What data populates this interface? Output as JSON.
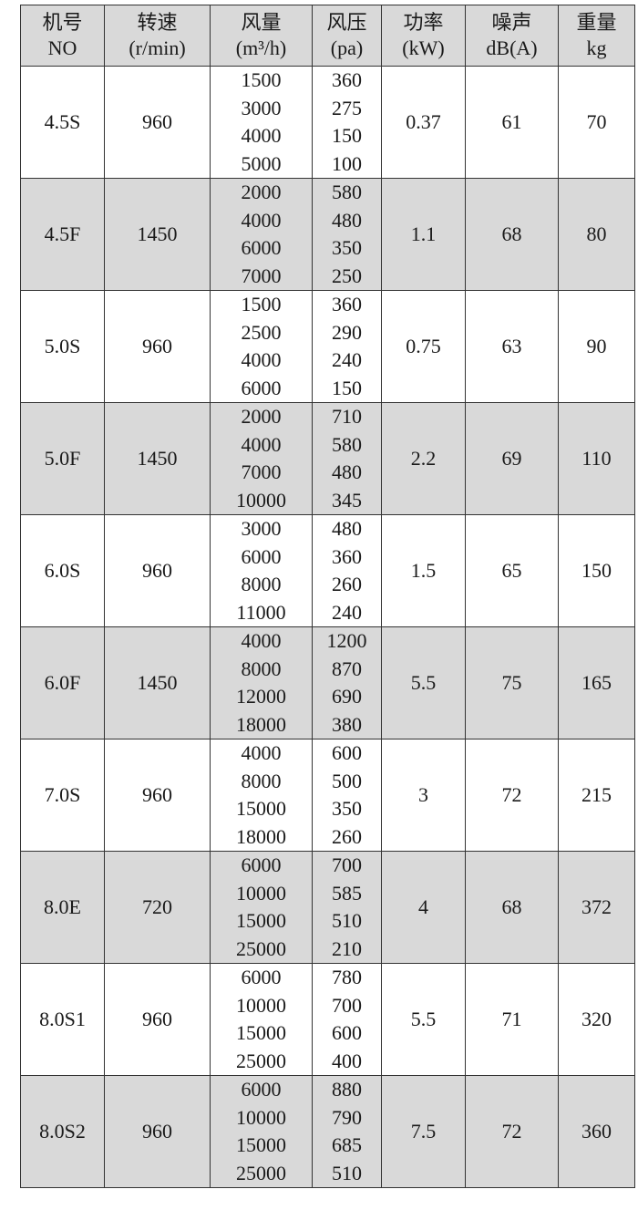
{
  "headers": [
    {
      "zh": "机号",
      "en": "NO"
    },
    {
      "zh": "转速",
      "en": "(r/min)"
    },
    {
      "zh": "风量",
      "en": "(m³/h)"
    },
    {
      "zh": "风压",
      "en": "(pa)"
    },
    {
      "zh": "功率",
      "en": "(kW)"
    },
    {
      "zh": "噪声",
      "en": "dB(A)"
    },
    {
      "zh": "重量",
      "en": "kg"
    }
  ],
  "rows": [
    {
      "no": "4.5S",
      "speed": "960",
      "flow": [
        "1500",
        "3000",
        "4000",
        "5000"
      ],
      "pressure": [
        "360",
        "275",
        "150",
        "100"
      ],
      "power": "0.37",
      "noise": "61",
      "weight": "70",
      "shaded": false
    },
    {
      "no": "4.5F",
      "speed": "1450",
      "flow": [
        "2000",
        "4000",
        "6000",
        "7000"
      ],
      "pressure": [
        "580",
        "480",
        "350",
        "250"
      ],
      "power": "1.1",
      "noise": "68",
      "weight": "80",
      "shaded": true
    },
    {
      "no": "5.0S",
      "speed": "960",
      "flow": [
        "1500",
        "2500",
        "4000",
        "6000"
      ],
      "pressure": [
        "360",
        "290",
        "240",
        "150"
      ],
      "power": "0.75",
      "noise": "63",
      "weight": "90",
      "shaded": false
    },
    {
      "no": "5.0F",
      "speed": "1450",
      "flow": [
        "2000",
        "4000",
        "7000",
        "10000"
      ],
      "pressure": [
        "710",
        "580",
        "480",
        "345"
      ],
      "power": "2.2",
      "noise": "69",
      "weight": "110",
      "shaded": true
    },
    {
      "no": "6.0S",
      "speed": "960",
      "flow": [
        "3000",
        "6000",
        "8000",
        "11000"
      ],
      "pressure": [
        "480",
        "360",
        "260",
        "240"
      ],
      "power": "1.5",
      "noise": "65",
      "weight": "150",
      "shaded": false
    },
    {
      "no": "6.0F",
      "speed": "1450",
      "flow": [
        "4000",
        "8000",
        "12000",
        "18000"
      ],
      "pressure": [
        "1200",
        "870",
        "690",
        "380"
      ],
      "power": "5.5",
      "noise": "75",
      "weight": "165",
      "shaded": true
    },
    {
      "no": "7.0S",
      "speed": "960",
      "flow": [
        "4000",
        "8000",
        "15000",
        "18000"
      ],
      "pressure": [
        "600",
        "500",
        "350",
        "260"
      ],
      "power": "3",
      "noise": "72",
      "weight": "215",
      "shaded": false
    },
    {
      "no": "8.0E",
      "speed": "720",
      "flow": [
        "6000",
        "10000",
        "15000",
        "25000"
      ],
      "pressure": [
        "700",
        "585",
        "510",
        "210"
      ],
      "power": "4",
      "noise": "68",
      "weight": "372",
      "shaded": true
    },
    {
      "no": "8.0S1",
      "speed": "960",
      "flow": [
        "6000",
        "10000",
        "15000",
        "25000"
      ],
      "pressure": [
        "780",
        "700",
        "600",
        "400"
      ],
      "power": "5.5",
      "noise": "71",
      "weight": "320",
      "shaded": false
    },
    {
      "no": "8.0S2",
      "speed": "960",
      "flow": [
        "6000",
        "10000",
        "15000",
        "25000"
      ],
      "pressure": [
        "880",
        "790",
        "685",
        "510"
      ],
      "power": "7.5",
      "noise": "72",
      "weight": "360",
      "shaded": true
    }
  ],
  "colors": {
    "shade": "#d9d9d9",
    "border": "#333333"
  }
}
